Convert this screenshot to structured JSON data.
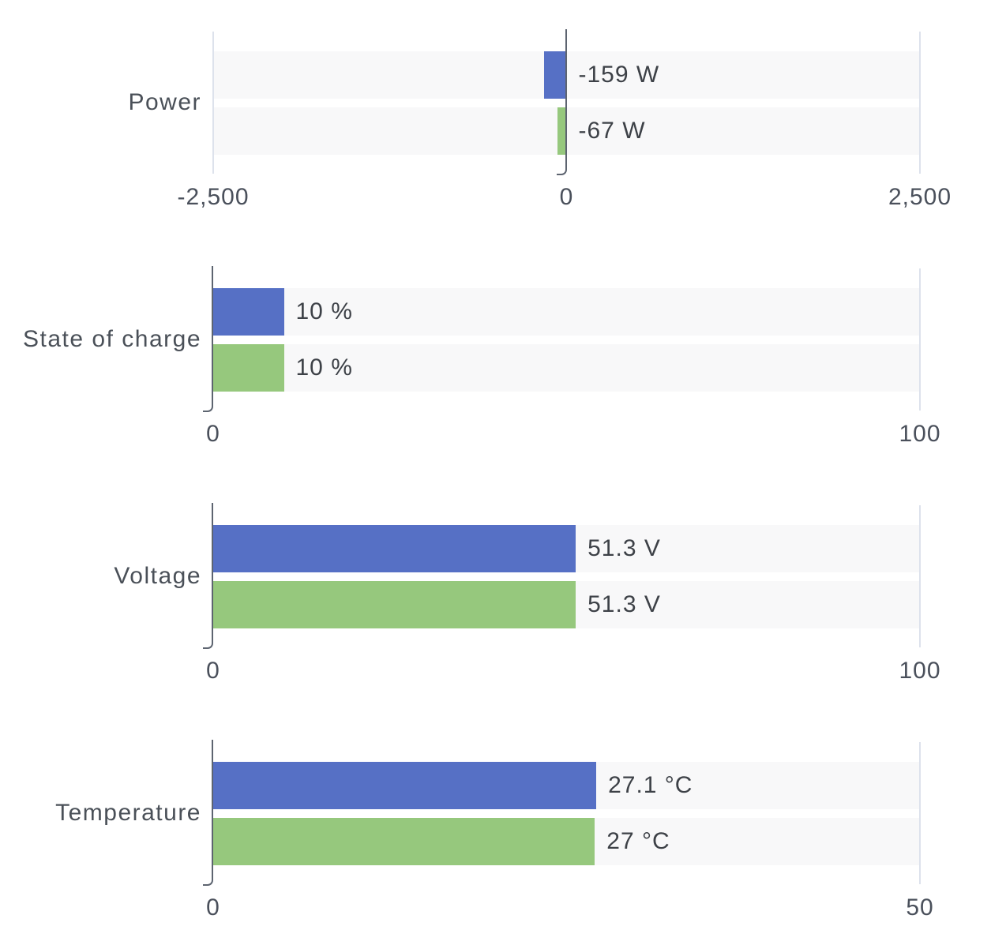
{
  "colors": {
    "series1": "#5670c5",
    "series2": "#96c87d",
    "track_band": "#f8f8f9",
    "zero_axis": "#5d6470",
    "grid_line": "#dde2ec",
    "category_text": "#4a5058",
    "tick_text": "#4a505b",
    "value_text": "#3d4147"
  },
  "chart_data": [
    {
      "type": "bar",
      "orientation": "horizontal",
      "title": "Power",
      "unit": "W",
      "xlim": [
        -2500,
        2500
      ],
      "grid": "zero axis dark with hook, edge lines light",
      "legend": "none",
      "ticks": [
        {
          "value": -2500,
          "label": "-2,500"
        },
        {
          "value": 0,
          "label": "0"
        },
        {
          "value": 2500,
          "label": "2,500"
        }
      ],
      "series": [
        {
          "name": "series-1",
          "value": -159,
          "label": "-159 W",
          "color": "#5670c5"
        },
        {
          "name": "series-2",
          "value": -67,
          "label": "-67 W",
          "color": "#96c87d"
        }
      ]
    },
    {
      "type": "bar",
      "orientation": "horizontal",
      "title": "State of charge",
      "unit": "%",
      "xlim": [
        0,
        100
      ],
      "grid": "zero axis dark with hook, edge lines light",
      "legend": "none",
      "ticks": [
        {
          "value": 0,
          "label": "0"
        },
        {
          "value": 100,
          "label": "100"
        }
      ],
      "series": [
        {
          "name": "series-1",
          "value": 10,
          "label": "10 %",
          "color": "#5670c5"
        },
        {
          "name": "series-2",
          "value": 10,
          "label": "10 %",
          "color": "#96c87d"
        }
      ]
    },
    {
      "type": "bar",
      "orientation": "horizontal",
      "title": "Voltage",
      "unit": "V",
      "xlim": [
        0,
        100
      ],
      "grid": "zero axis dark with hook, edge lines light",
      "legend": "none",
      "ticks": [
        {
          "value": 0,
          "label": "0"
        },
        {
          "value": 100,
          "label": "100"
        }
      ],
      "series": [
        {
          "name": "series-1",
          "value": 51.3,
          "label": "51.3 V",
          "color": "#5670c5"
        },
        {
          "name": "series-2",
          "value": 51.3,
          "label": "51.3 V",
          "color": "#96c87d"
        }
      ]
    },
    {
      "type": "bar",
      "orientation": "horizontal",
      "title": "Temperature",
      "unit": "°C",
      "xlim": [
        0,
        50
      ],
      "grid": "zero axis dark with hook, edge lines light",
      "legend": "none",
      "ticks": [
        {
          "value": 0,
          "label": "0"
        },
        {
          "value": 50,
          "label": "50"
        }
      ],
      "series": [
        {
          "name": "series-1",
          "value": 27.1,
          "label": "27.1 °C",
          "color": "#5670c5"
        },
        {
          "name": "series-2",
          "value": 27,
          "label": "27 °C",
          "color": "#96c87d"
        }
      ]
    }
  ]
}
